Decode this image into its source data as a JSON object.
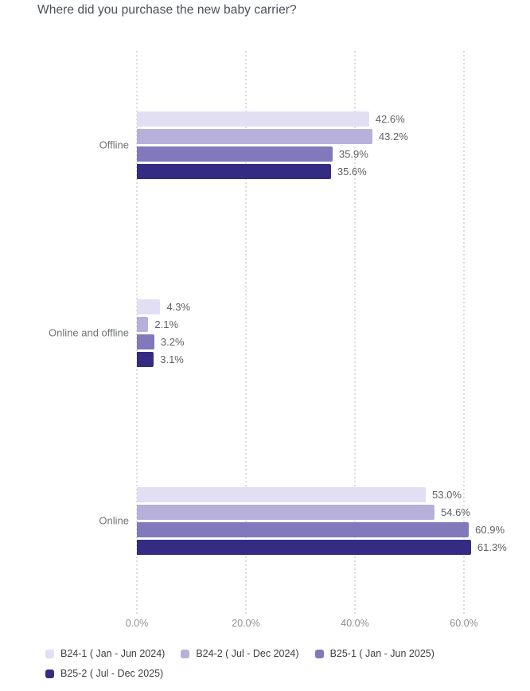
{
  "title": "Where did you purchase the new baby carrier?",
  "chart_data": {
    "type": "bar",
    "orientation": "horizontal",
    "title": "Where did you purchase the new baby carrier?",
    "categories": [
      "Offline",
      "Online and offline",
      "Online"
    ],
    "series": [
      {
        "name": "B24-1 ( Jan - Jun 2024)",
        "color": "#e2def4",
        "values": [
          42.6,
          4.3,
          53.0
        ]
      },
      {
        "name": "B24-2 ( Jul - Dec 2024)",
        "color": "#b7b0db",
        "values": [
          43.2,
          2.1,
          54.6
        ]
      },
      {
        "name": "B25-1 ( Jan - Jun 2025)",
        "color": "#8278bc",
        "values": [
          35.9,
          3.2,
          60.9
        ]
      },
      {
        "name": "B25-2 ( Jul - Dec 2025)",
        "color": "#342c83",
        "values": [
          35.6,
          3.1,
          61.3
        ]
      }
    ],
    "value_labels": [
      [
        "42.6%",
        "43.2%",
        "35.9%",
        "35.6%"
      ],
      [
        "4.3%",
        "2.1%",
        "3.2%",
        "3.1%"
      ],
      [
        "53.0%",
        "54.6%",
        "60.9%",
        "61.3%"
      ]
    ],
    "x_ticks": [
      "0.0%",
      "20.0%",
      "40.0%",
      "60.0%"
    ],
    "x_tick_values": [
      0,
      20,
      40,
      60
    ],
    "xlim": [
      0,
      60
    ],
    "xlabel": "",
    "ylabel": "",
    "grid": "vertical-dotted",
    "gridline_color": "#dcdcdc",
    "legend_position": "bottom",
    "value_label_color": "#5d6165",
    "category_label_color": "#6f7377",
    "tick_label_color": "#8c8f92",
    "title_color": "#4a5158"
  }
}
